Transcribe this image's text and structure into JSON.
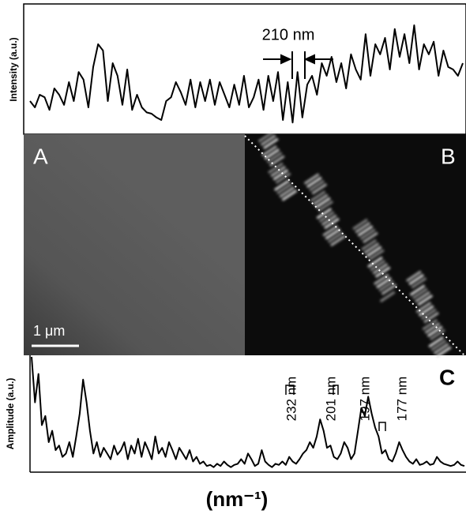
{
  "chart_data": [
    {
      "type": "line",
      "y_label": "Intensity (a.u.)",
      "annotation": "210 nm",
      "color": "#000000",
      "ylim": [
        0,
        100
      ],
      "values": [
        25,
        20,
        30,
        28,
        18,
        35,
        30,
        22,
        40,
        25,
        48,
        42,
        20,
        52,
        70,
        65,
        25,
        55,
        45,
        22,
        50,
        18,
        30,
        20,
        16,
        15,
        12,
        10,
        25,
        28,
        40,
        32,
        22,
        42,
        20,
        40,
        25,
        42,
        22,
        40,
        30,
        20,
        38,
        22,
        45,
        20,
        28,
        42,
        18,
        45,
        25,
        48,
        10,
        40,
        8,
        48,
        12,
        38,
        45,
        30,
        55,
        45,
        60,
        40,
        55,
        35,
        62,
        50,
        42,
        78,
        45,
        70,
        62,
        75,
        50,
        82,
        60,
        78,
        55,
        85,
        50,
        70,
        62,
        72,
        45,
        65,
        52,
        50,
        45,
        55
      ]
    },
    {
      "type": "image",
      "panels": [
        "A",
        "B"
      ],
      "scale_bar": "1 μm"
    },
    {
      "type": "line",
      "y_label": "Amplitude (a.u.)",
      "x_label": "(nm⁻¹)",
      "panel": "C",
      "color": "#000000",
      "ylim": [
        0,
        100
      ],
      "annotations": [
        "232 nm",
        "201 nm",
        "197 nm",
        "177 nm"
      ],
      "values": [
        100,
        60,
        85,
        40,
        48,
        25,
        35,
        18,
        22,
        12,
        15,
        25,
        12,
        30,
        50,
        80,
        60,
        35,
        15,
        25,
        12,
        20,
        15,
        10,
        22,
        14,
        18,
        25,
        10,
        22,
        15,
        28,
        12,
        25,
        18,
        10,
        30,
        15,
        20,
        12,
        25,
        18,
        10,
        20,
        15,
        10,
        18,
        8,
        12,
        6,
        8,
        4,
        5,
        3,
        6,
        4,
        8,
        5,
        3,
        5,
        6,
        10,
        6,
        15,
        10,
        4,
        6,
        18,
        8,
        5,
        3,
        6,
        5,
        8,
        5,
        12,
        8,
        6,
        10,
        15,
        18,
        25,
        20,
        30,
        45,
        35,
        20,
        22,
        12,
        10,
        15,
        25,
        20,
        10,
        15,
        35,
        55,
        48,
        65,
        50,
        38,
        30,
        15,
        18,
        10,
        8,
        15,
        25,
        18,
        12,
        8,
        6,
        10,
        5,
        6,
        8,
        5,
        6,
        12,
        8,
        6,
        5,
        4,
        5,
        8,
        5,
        4
      ]
    }
  ]
}
